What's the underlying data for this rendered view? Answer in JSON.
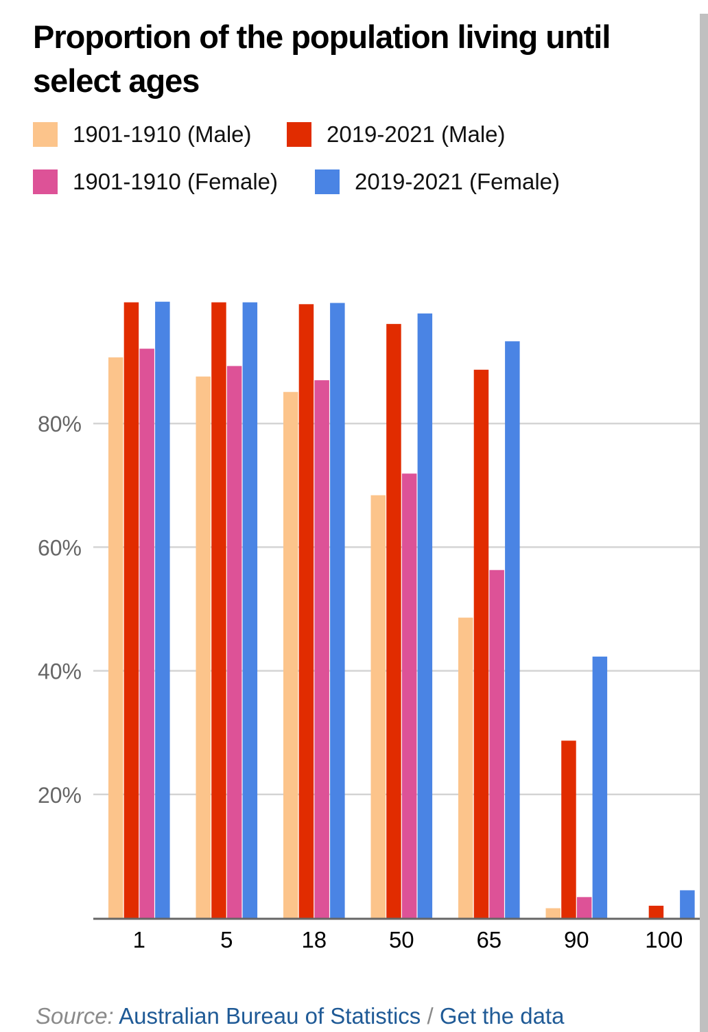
{
  "colors": {
    "m1901": "#fcc48b",
    "m2019": "#e12c00",
    "f1901": "#dd5297",
    "f2019": "#4a84e4",
    "grid": "#d4d4d4",
    "axis": "#666666",
    "scrollbar": "#c0c0c0"
  },
  "chart_data": {
    "type": "bar",
    "title": "Proportion of the population living until select ages",
    "xlabel": "",
    "ylabel": "",
    "ylim": [
      0,
      100
    ],
    "yticks": [
      20,
      40,
      60,
      80
    ],
    "ytick_labels": [
      "20%",
      "40%",
      "60%",
      "80%"
    ],
    "grid": true,
    "legend_position": "top",
    "categories": [
      "1",
      "5",
      "18",
      "50",
      "65",
      "90",
      "100"
    ],
    "series": [
      {
        "name": "1901-1910 (Male)",
        "color": "#fcc48b",
        "values": [
          90.7,
          87.6,
          85.1,
          68.4,
          48.6,
          1.6,
          0.0
        ]
      },
      {
        "name": "2019-2021 (Male)",
        "color": "#e12c00",
        "values": [
          99.6,
          99.6,
          99.3,
          96.1,
          88.7,
          28.7,
          2.0
        ]
      },
      {
        "name": "1901-1910 (Female)",
        "color": "#dd5297",
        "values": [
          92.1,
          89.3,
          87.0,
          71.9,
          56.3,
          3.4,
          0.0
        ]
      },
      {
        "name": "2019-2021 (Female)",
        "color": "#4a84e4",
        "values": [
          99.7,
          99.6,
          99.5,
          97.8,
          93.3,
          42.3,
          4.5
        ]
      }
    ]
  },
  "header": {
    "title": "Proportion of the population living until select ages"
  },
  "legend": {
    "items": [
      {
        "label": "1901-1910 (Male)"
      },
      {
        "label": "2019-2021 (Male)"
      },
      {
        "label": "1901-1910 (Female)"
      },
      {
        "label": "2019-2021 (Female)"
      }
    ]
  },
  "footer": {
    "source_label": "Source:",
    "source_link": "Australian Bureau of Statistics",
    "separator": "/",
    "data_link": "Get the data"
  }
}
